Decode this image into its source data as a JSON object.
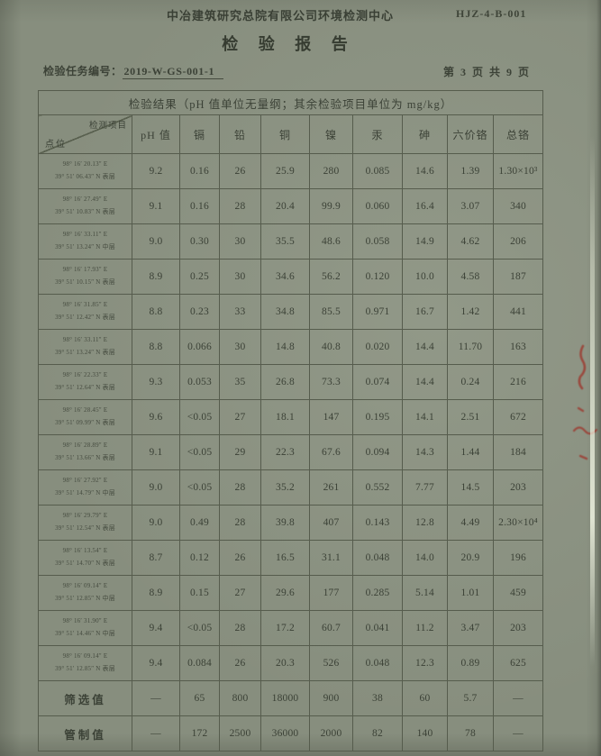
{
  "page": {
    "org_name": "中冶建筑研究总院有限公司环境检测中心",
    "form_code": "HJZ-4-B-001",
    "title": "检 验 报 告",
    "task_label": "检验任务编号：",
    "task_number": "2019-W-GS-001-1",
    "page_info": "第 3 页  共 9 页"
  },
  "table": {
    "caption": "检验结果（pH 值单位无量纲；其余检验项目单位为 mg/kg）",
    "corner": {
      "top_right": "检测项目",
      "bottom_left": "点位"
    },
    "columns": [
      "pH 值",
      "镉",
      "铅",
      "铜",
      "镍",
      "汞",
      "砷",
      "六价铬",
      "总铬"
    ],
    "rows": [
      {
        "lon": "98° 16′ 20.13″ E",
        "lat": "39° 51′ 06.43″ N 表层",
        "values": [
          "9.2",
          "0.16",
          "26",
          "25.9",
          "280",
          "0.085",
          "14.6",
          "1.39",
          "1.30×10³"
        ]
      },
      {
        "lon": "98° 16′ 27.49″ E",
        "lat": "39° 51′ 10.83″ N 表层",
        "values": [
          "9.1",
          "0.16",
          "28",
          "20.4",
          "99.9",
          "0.060",
          "16.4",
          "3.07",
          "340"
        ]
      },
      {
        "lon": "98° 16′ 33.11″ E",
        "lat": "39° 51′ 13.24″ N 中层",
        "values": [
          "9.0",
          "0.30",
          "30",
          "35.5",
          "48.6",
          "0.058",
          "14.9",
          "4.62",
          "206"
        ]
      },
      {
        "lon": "98° 16′ 17.93″ E",
        "lat": "39° 51′ 10.15″ N 表层",
        "values": [
          "8.9",
          "0.25",
          "30",
          "34.6",
          "56.2",
          "0.120",
          "10.0",
          "4.58",
          "187"
        ]
      },
      {
        "lon": "98° 16′ 31.85″ E",
        "lat": "39° 51′ 12.42″ N 表层",
        "values": [
          "8.8",
          "0.23",
          "33",
          "34.8",
          "85.5",
          "0.971",
          "16.7",
          "1.42",
          "441"
        ]
      },
      {
        "lon": "98° 16′ 33.11″ E",
        "lat": "39° 51′ 13.24″ N 表层",
        "values": [
          "8.8",
          "0.066",
          "30",
          "14.8",
          "40.8",
          "0.020",
          "14.4",
          "11.70",
          "163"
        ]
      },
      {
        "lon": "98° 16′ 22.33″ E",
        "lat": "39° 51′ 12.64″ N 表层",
        "values": [
          "9.3",
          "0.053",
          "35",
          "26.8",
          "73.3",
          "0.074",
          "14.4",
          "0.24",
          "216"
        ]
      },
      {
        "lon": "98° 16′ 28.45″ E",
        "lat": "39° 51′ 09.99″ N 表层",
        "values": [
          "9.6",
          "<0.05",
          "27",
          "18.1",
          "147",
          "0.195",
          "14.1",
          "2.51",
          "672"
        ]
      },
      {
        "lon": "98° 16′ 28.89″ E",
        "lat": "39° 51′ 13.66″ N 表层",
        "values": [
          "9.1",
          "<0.05",
          "29",
          "22.3",
          "67.6",
          "0.094",
          "14.3",
          "1.44",
          "184"
        ]
      },
      {
        "lon": "98° 16′ 27.92″ E",
        "lat": "39° 51′ 14.79″ N 中层",
        "values": [
          "9.0",
          "<0.05",
          "28",
          "35.2",
          "261",
          "0.552",
          "7.77",
          "14.5",
          "203"
        ]
      },
      {
        "lon": "98° 16′ 29.79″ E",
        "lat": "39° 51′ 12.54″ N 表层",
        "values": [
          "9.0",
          "0.49",
          "28",
          "39.8",
          "407",
          "0.143",
          "12.8",
          "4.49",
          "2.30×10⁴"
        ]
      },
      {
        "lon": "98° 16′ 13.54″ E",
        "lat": "39° 51′ 14.70″ N 表层",
        "values": [
          "8.7",
          "0.12",
          "26",
          "16.5",
          "31.1",
          "0.048",
          "14.0",
          "20.9",
          "196"
        ]
      },
      {
        "lon": "98° 16′ 09.14″ E",
        "lat": "39° 51′ 12.85″ N 中层",
        "values": [
          "8.9",
          "0.15",
          "27",
          "29.6",
          "177",
          "0.285",
          "5.14",
          "1.01",
          "459"
        ]
      },
      {
        "lon": "98° 16′ 31.90″ E",
        "lat": "39° 51′ 14.46″ N 中层",
        "values": [
          "9.4",
          "<0.05",
          "28",
          "17.2",
          "60.7",
          "0.041",
          "11.2",
          "3.47",
          "203"
        ]
      },
      {
        "lon": "98° 16′ 09.14″ E",
        "lat": "39° 51′ 12.85″ N 表层",
        "values": [
          "9.4",
          "0.084",
          "26",
          "20.3",
          "526",
          "0.048",
          "12.3",
          "0.89",
          "625"
        ]
      }
    ],
    "limit_rows": [
      {
        "label": "筛选值",
        "values": [
          "—",
          "65",
          "800",
          "18000",
          "900",
          "38",
          "60",
          "5.7",
          "—"
        ]
      },
      {
        "label": "管制值",
        "values": [
          "—",
          "172",
          "2500",
          "36000",
          "2000",
          "82",
          "140",
          "78",
          "—"
        ]
      }
    ]
  }
}
